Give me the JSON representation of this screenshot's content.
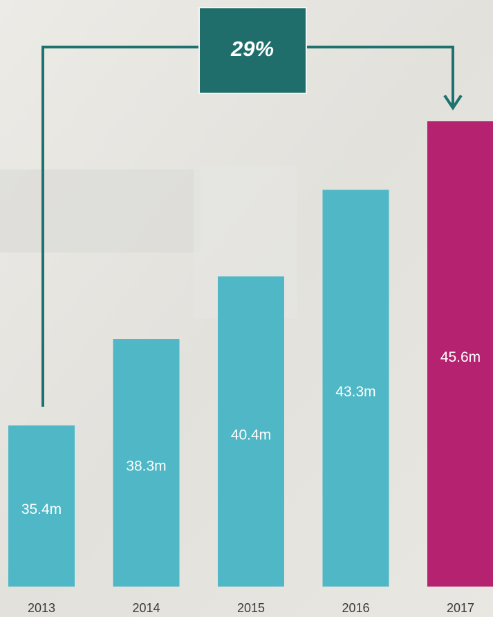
{
  "chart_data": {
    "type": "bar",
    "categories": [
      "2013",
      "2014",
      "2015",
      "2016",
      "2017"
    ],
    "values": [
      35.4,
      38.3,
      40.4,
      43.3,
      45.6
    ],
    "value_labels": [
      "35.4m",
      "38.3m",
      "40.4m",
      "43.3m",
      "45.6m"
    ],
    "colors": [
      "#4fb7c5",
      "#4fb7c5",
      "#4fb7c5",
      "#4fb7c5",
      "#b5226f"
    ],
    "ylim": [
      30,
      46
    ],
    "annotation": "29%"
  }
}
